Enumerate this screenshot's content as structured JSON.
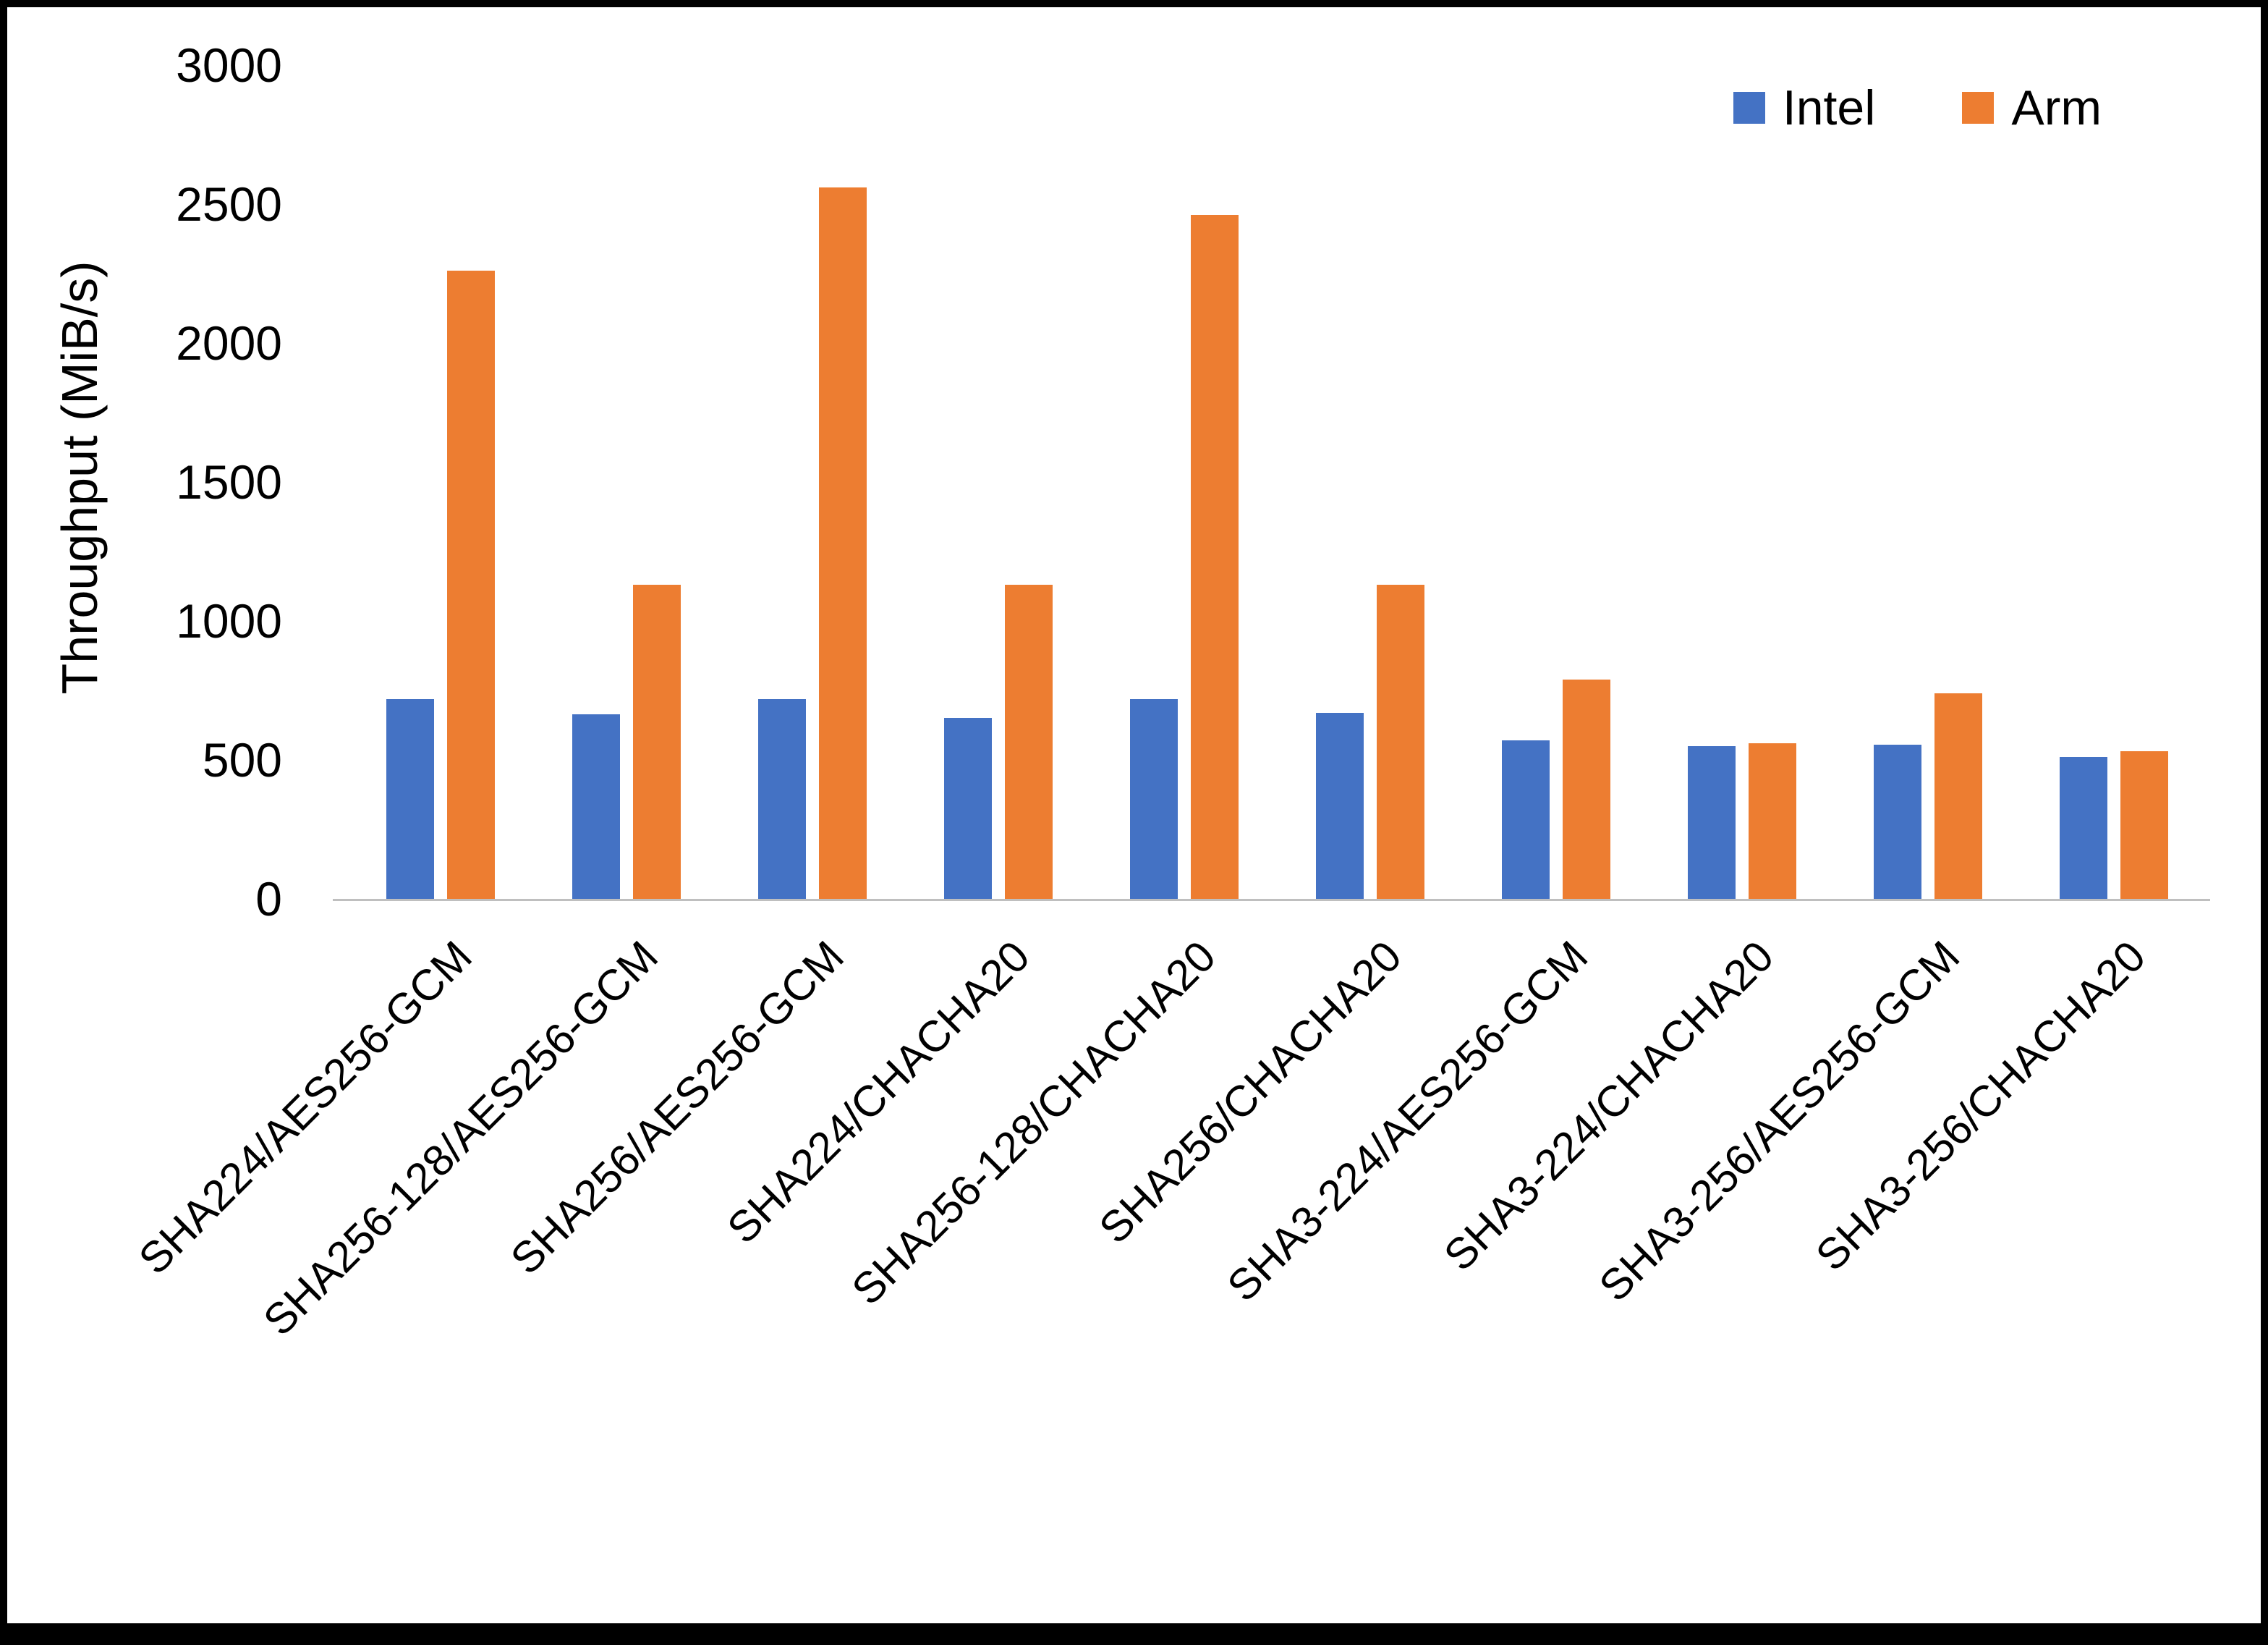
{
  "page": {
    "background": "#ffffff",
    "border_color": "#000000"
  },
  "legend": {
    "items": [
      {
        "label": "Intel",
        "color": "#4472C4"
      },
      {
        "label": "Arm",
        "color": "#ED7D31"
      }
    ]
  },
  "chart_data": {
    "type": "bar",
    "title": "",
    "xlabel": "",
    "ylabel": "Throughput (MiB/s)",
    "ylim": [
      0,
      3000
    ],
    "ytick_step": 500,
    "ytick_labels": [
      "0",
      "500",
      "1000",
      "1500",
      "2000",
      "2500",
      "3000"
    ],
    "grid": false,
    "legend_position": "top-right",
    "categories": [
      "SHA224/AES256-GCM",
      "SHA256-128/AES256-GCM",
      "SHA256/AES256-GCM",
      "SHA224/CHACHA20",
      "SHA256-128/CHACHA20",
      "SHA256/CHACHA20",
      "SHA3-224/AES256-GCM",
      "SHA3-224/CHACHA20",
      "SHA3-256/AES256-GCM",
      "SHA3-256/CHACHA20"
    ],
    "series": [
      {
        "name": "Intel",
        "color": "#4472C4",
        "values": [
          720,
          665,
          720,
          650,
          720,
          670,
          570,
          550,
          555,
          510
        ]
      },
      {
        "name": "Arm",
        "color": "#ED7D31",
        "values": [
          2260,
          1130,
          2560,
          1130,
          2460,
          1130,
          790,
          560,
          740,
          530
        ]
      }
    ]
  }
}
